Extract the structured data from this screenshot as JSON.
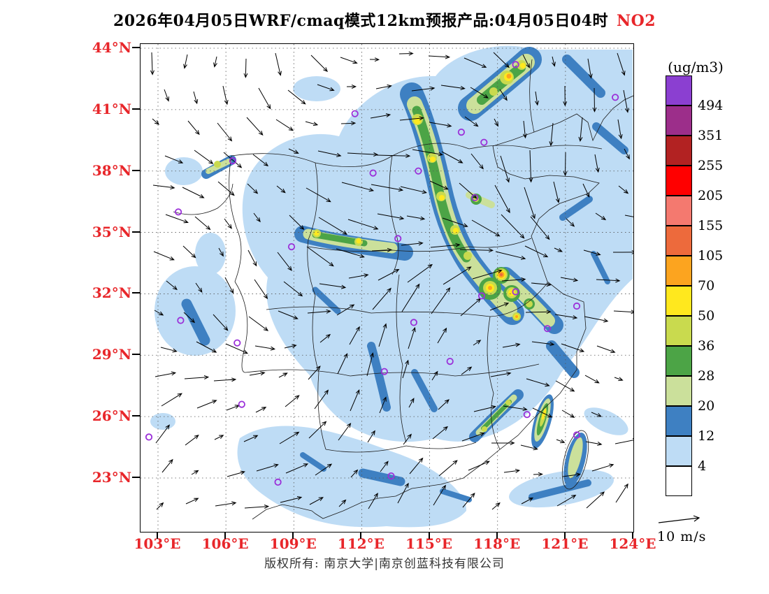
{
  "title": {
    "main": "2026年04月05日WRF/cmaq模式12km预报产品:04月05日04时",
    "species": "NO2"
  },
  "colorbar": {
    "unit_label": "(ug/m3)",
    "levels": [
      "494",
      "351",
      "255",
      "205",
      "155",
      "105",
      "70",
      "50",
      "36",
      "28",
      "20",
      "12",
      "4"
    ],
    "colors_top_to_bottom": [
      "#8B3FD1",
      "#9C2E8A",
      "#B22222",
      "#FF0000",
      "#F4796F",
      "#ED6A3C",
      "#FCA41F",
      "#FFE81E",
      "#C9DA4E",
      "#4CA446",
      "#CBE09B",
      "#3E80C2",
      "#BEDCF5",
      "#FFFFFF"
    ]
  },
  "axes": {
    "lat_labels": [
      "44°N",
      "41°N",
      "38°N",
      "35°N",
      "32°N",
      "29°N",
      "26°N",
      "23°N"
    ],
    "lat_ticks_deg": [
      44,
      41,
      38,
      35,
      32,
      29,
      26,
      23
    ],
    "lon_labels": [
      "103°E",
      "106°E",
      "109°E",
      "112°E",
      "115°E",
      "118°E",
      "121°E",
      "124°E"
    ],
    "lon_ticks_deg": [
      103,
      106,
      109,
      112,
      115,
      118,
      121,
      124
    ],
    "label_color": "#E8262A"
  },
  "wind_legend": {
    "label": "10 m/s"
  },
  "footer": {
    "text": "版权所有: 南京大学|南京创蓝科技有限公司"
  },
  "map": {
    "marker_color": "#9B30D9",
    "station_markers": [
      {
        "lon": 116.4,
        "lat": 39.9
      },
      {
        "lon": 117.4,
        "lat": 39.4
      },
      {
        "lon": 114.5,
        "lat": 38.0
      },
      {
        "lon": 112.5,
        "lat": 37.9
      },
      {
        "lon": 111.7,
        "lat": 40.8
      },
      {
        "lon": 123.2,
        "lat": 41.6
      },
      {
        "lon": 118.8,
        "lat": 43.2
      },
      {
        "lon": 117.0,
        "lat": 36.7
      },
      {
        "lon": 113.6,
        "lat": 34.7
      },
      {
        "lon": 108.9,
        "lat": 34.3
      },
      {
        "lon": 103.9,
        "lat": 36.0
      },
      {
        "lon": 106.3,
        "lat": 38.5
      },
      {
        "lon": 114.3,
        "lat": 30.6
      },
      {
        "lon": 117.3,
        "lat": 31.9
      },
      {
        "lon": 118.8,
        "lat": 32.1
      },
      {
        "lon": 121.5,
        "lat": 31.4
      },
      {
        "lon": 120.2,
        "lat": 30.3
      },
      {
        "lon": 115.9,
        "lat": 28.7
      },
      {
        "lon": 113.0,
        "lat": 28.2
      },
      {
        "lon": 119.3,
        "lat": 26.1
      },
      {
        "lon": 106.7,
        "lat": 26.6
      },
      {
        "lon": 104.0,
        "lat": 30.7
      },
      {
        "lon": 106.5,
        "lat": 29.6
      },
      {
        "lon": 108.3,
        "lat": 22.8
      },
      {
        "lon": 113.3,
        "lat": 23.1
      },
      {
        "lon": 121.5,
        "lat": 25.1
      },
      {
        "lon": 102.6,
        "lat": 25.0
      }
    ]
  }
}
